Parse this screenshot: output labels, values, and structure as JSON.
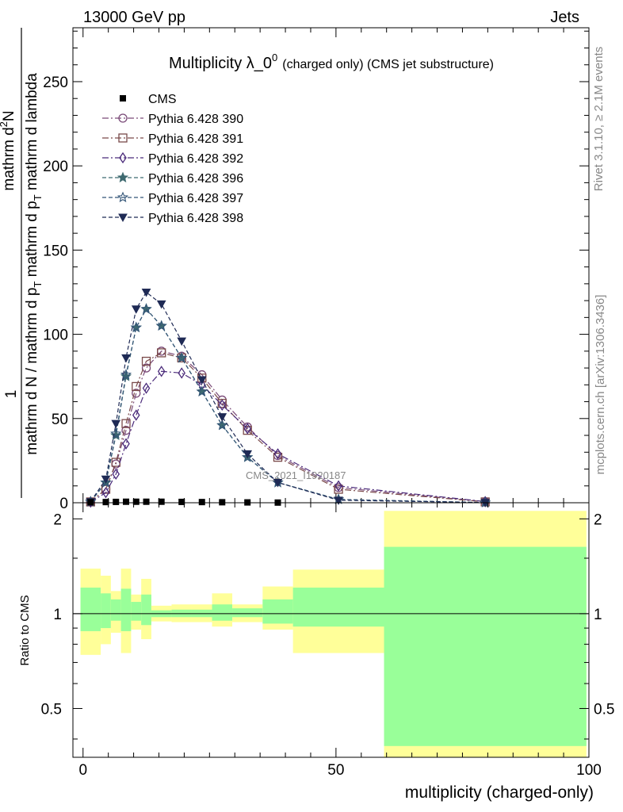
{
  "header": {
    "energy": "13000 GeV pp",
    "process": "Jets"
  },
  "side_labels": {
    "rivet": "Rivet 3.1.10, ≥ 2.1M events",
    "mcplots": "mcplots.cern.ch [arXiv:1306.3436]"
  },
  "watermark": "CMS_2021_I1920187",
  "chart_data": [
    {
      "type": "line",
      "title_main": "Multiplicity λ_0",
      "title_sup": "0",
      "title_sub": "(charged only) (CMS jet substructure)",
      "ylabel_frac_top": "mathrm d",
      "ylabel_frac_top_sup": "2",
      "ylabel_frac_top_tail": "N",
      "ylabel_frac_bottom": "mathrm d p",
      "ylabel_frac_bottom_sub": "T",
      "ylabel_frac_bottom_tail": " mathrm d lambda",
      "ylabel_left_top": "1",
      "ylabel_left_bottom_a": "mathrm d N / mathrm d p",
      "ylabel_left_bottom_sub": "T",
      "ylabel_left_bottom_b": " mathrm d p",
      "ylabel_left_bottom_sub2": "T",
      "ylabel_left_bottom_c": " mathrm d lambda",
      "xlim": [
        -2,
        100
      ],
      "ylim": [
        0,
        282
      ],
      "yticks": [
        0,
        50,
        100,
        150,
        200,
        250
      ],
      "legend_position": "top-left",
      "cms": {
        "name": "CMS",
        "x": [
          1.5,
          4.5,
          6.5,
          8.5,
          10.5,
          12.5,
          15.5,
          19.5,
          23.5,
          27.5,
          32.5,
          38.5
        ],
        "y": [
          0.3,
          0.4,
          0.5,
          0.6,
          0.6,
          0.6,
          0.6,
          0.5,
          0.4,
          0.3,
          0.2,
          0.1
        ]
      },
      "series": [
        {
          "name": "Pythia 6.428 390",
          "color": "#7a4a78",
          "marker": "open-circle",
          "dash": "dashdot",
          "x": [
            1.5,
            4.5,
            6.5,
            8.5,
            10.5,
            12.5,
            15.5,
            19.5,
            23.5,
            27.5,
            32.5,
            38.5,
            50.5,
            79.5
          ],
          "y": [
            0.5,
            8,
            23,
            43,
            65,
            80,
            90,
            87,
            76,
            61,
            45,
            28,
            9,
            0.6
          ]
        },
        {
          "name": "Pythia 6.428 391",
          "color": "#7a4a4a",
          "marker": "open-square",
          "dash": "dashdot",
          "x": [
            1.5,
            4.5,
            6.5,
            8.5,
            10.5,
            12.5,
            15.5,
            19.5,
            23.5,
            27.5,
            32.5,
            38.5,
            50.5,
            79.5
          ],
          "y": [
            0.5,
            8,
            24,
            47,
            69,
            84,
            89,
            86,
            74,
            59,
            43,
            27,
            8,
            0.5
          ]
        },
        {
          "name": "Pythia 6.428 392",
          "color": "#4a2a7a",
          "marker": "open-diamond",
          "dash": "dashdot",
          "x": [
            1.5,
            4.5,
            6.5,
            8.5,
            10.5,
            12.5,
            15.5,
            19.5,
            23.5,
            27.5,
            32.5,
            38.5,
            50.5,
            79.5
          ],
          "y": [
            0.4,
            6,
            17,
            35,
            52,
            68,
            78,
            77,
            70,
            58,
            44,
            29,
            10,
            0.7
          ]
        },
        {
          "name": "Pythia 6.428 396",
          "color": "#3f6a70",
          "marker": "star",
          "dash": "dashed",
          "x": [
            1.5,
            4.5,
            6.5,
            8.5,
            10.5,
            12.5,
            15.5,
            19.5,
            23.5,
            27.5,
            32.5,
            38.5,
            50.5,
            79.5
          ],
          "y": [
            0.6,
            12,
            40,
            75,
            104,
            115,
            105,
            86,
            66,
            46,
            27,
            12,
            2,
            0.1
          ]
        },
        {
          "name": "Pythia 6.428 397",
          "color": "#335577",
          "marker": "open-star",
          "dash": "dashed",
          "x": [
            1.5,
            4.5,
            6.5,
            8.5,
            10.5,
            12.5,
            15.5,
            19.5,
            23.5,
            27.5,
            32.5,
            38.5,
            50.5,
            79.5
          ],
          "y": [
            0.6,
            12,
            41,
            76,
            104,
            115,
            105,
            86,
            66,
            46,
            27,
            12,
            2,
            0.1
          ]
        },
        {
          "name": "Pythia 6.428 398",
          "color": "#1f2a55",
          "marker": "filled-triangle-down",
          "dash": "dashed",
          "x": [
            1.5,
            4.5,
            6.5,
            8.5,
            10.5,
            12.5,
            15.5,
            19.5,
            23.5,
            27.5,
            32.5,
            38.5,
            50.5,
            79.5
          ],
          "y": [
            0.6,
            14,
            47,
            86,
            115,
            125,
            118,
            96,
            73,
            51,
            29,
            12,
            1.5,
            0.1
          ]
        }
      ]
    },
    {
      "type": "area",
      "ylabel": "Ratio to CMS",
      "xlabel": "multiplicity (charged-only)",
      "xlim": [
        -2,
        100
      ],
      "ylim": [
        0.35,
        2.25
      ],
      "yticks": [
        0.5,
        1,
        2
      ],
      "xticks": [
        0,
        50,
        100
      ],
      "reference_line": 1,
      "bins": [
        {
          "x0": -0.5,
          "x1": 3.5,
          "g_lo": 0.88,
          "g_hi": 1.21,
          "y_lo": 0.74,
          "y_hi": 1.39
        },
        {
          "x0": 3.5,
          "x1": 5.5,
          "g_lo": 0.9,
          "g_hi": 1.16,
          "y_lo": 0.8,
          "y_hi": 1.32
        },
        {
          "x0": 5.5,
          "x1": 7.5,
          "g_lo": 0.95,
          "g_hi": 1.11,
          "y_lo": 0.87,
          "y_hi": 1.18
        },
        {
          "x0": 7.5,
          "x1": 9.5,
          "g_lo": 0.88,
          "g_hi": 1.2,
          "y_lo": 0.75,
          "y_hi": 1.39
        },
        {
          "x0": 9.5,
          "x1": 11.5,
          "g_lo": 0.95,
          "g_hi": 1.09,
          "y_lo": 0.89,
          "y_hi": 1.15
        },
        {
          "x0": 11.5,
          "x1": 13.5,
          "g_lo": 0.92,
          "g_hi": 1.15,
          "y_lo": 0.83,
          "y_hi": 1.29
        },
        {
          "x0": 13.5,
          "x1": 17.5,
          "g_lo": 0.975,
          "g_hi": 1.025,
          "y_lo": 0.945,
          "y_hi": 1.06
        },
        {
          "x0": 17.5,
          "x1": 21.5,
          "g_lo": 0.975,
          "g_hi": 1.03,
          "y_lo": 0.94,
          "y_hi": 1.07
        },
        {
          "x0": 21.5,
          "x1": 25.5,
          "g_lo": 0.975,
          "g_hi": 1.03,
          "y_lo": 0.94,
          "y_hi": 1.07
        },
        {
          "x0": 25.5,
          "x1": 29.5,
          "g_lo": 0.95,
          "g_hi": 1.07,
          "y_lo": 0.91,
          "y_hi": 1.16
        },
        {
          "x0": 29.5,
          "x1": 35.5,
          "g_lo": 0.975,
          "g_hi": 1.04,
          "y_lo": 0.94,
          "y_hi": 1.07
        },
        {
          "x0": 35.5,
          "x1": 41.5,
          "g_lo": 0.93,
          "g_hi": 1.11,
          "y_lo": 0.89,
          "y_hi": 1.22
        },
        {
          "x0": 41.5,
          "x1": 59.5,
          "g_lo": 0.91,
          "g_hi": 1.21,
          "y_lo": 0.75,
          "y_hi": 1.38
        },
        {
          "x0": 59.5,
          "x1": 99.5,
          "g_lo": 0.38,
          "g_hi": 1.63,
          "y_lo": 0.32,
          "y_hi": 2.12
        }
      ]
    }
  ]
}
